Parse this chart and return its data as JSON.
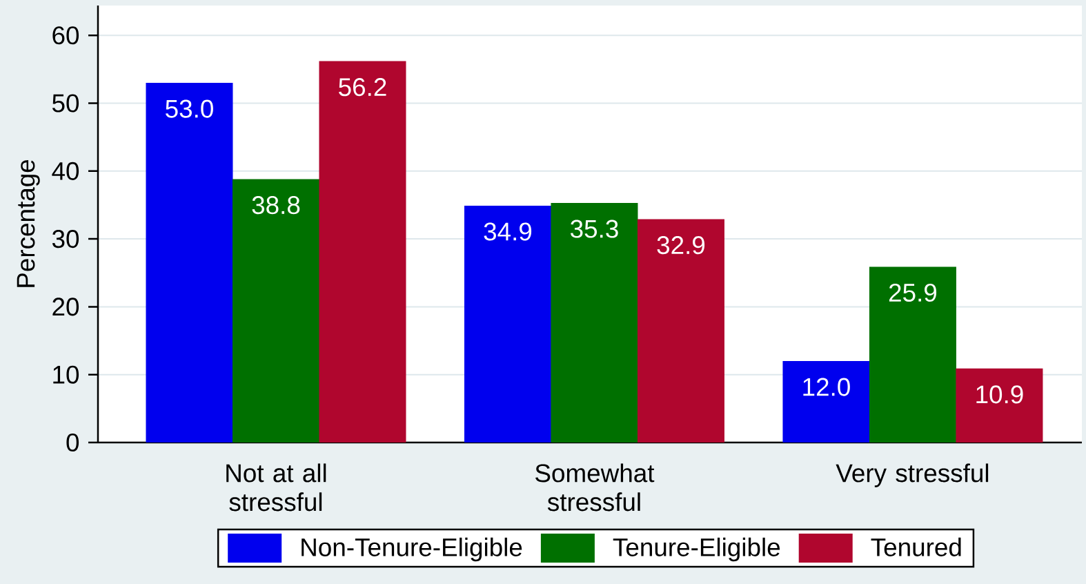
{
  "chart_data": {
    "type": "bar",
    "ylabel": "Percentage",
    "categories": [
      "Not at all stressful",
      "Somewhat stressful",
      "Very stressful"
    ],
    "series": [
      {
        "name": "Non-Tenure-Eligible",
        "color": "#0000ee",
        "values": [
          53.0,
          34.9,
          12.0
        ],
        "value_labels": [
          "53.0",
          "34.9",
          "12.0"
        ]
      },
      {
        "name": "Tenure-Eligible",
        "color": "#007000",
        "values": [
          38.8,
          35.3,
          25.9
        ],
        "value_labels": [
          "38.8",
          "35.3",
          "25.9"
        ]
      },
      {
        "name": "Tenured",
        "color": "#b0062e",
        "values": [
          56.2,
          32.9,
          10.9
        ],
        "value_labels": [
          "56.2",
          "32.9",
          "10.9"
        ]
      }
    ],
    "ylim": [
      0,
      64.4
    ],
    "yticks": [
      0,
      10,
      20,
      30,
      40,
      50,
      60
    ],
    "grid": "y",
    "legend": "bottom"
  }
}
